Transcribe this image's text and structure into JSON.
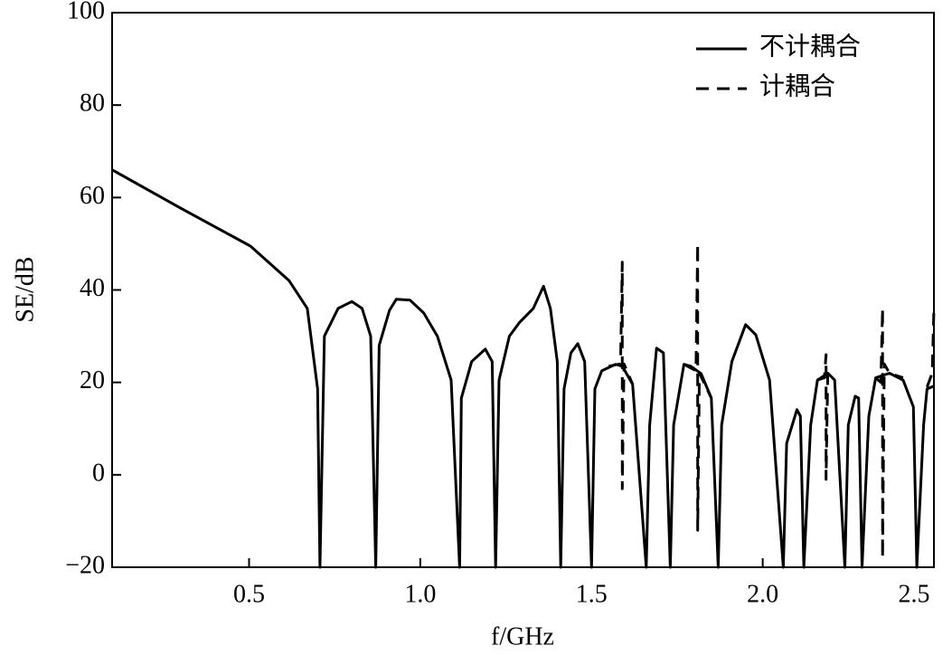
{
  "chart_data": {
    "type": "line",
    "xlabel": "f/GHz",
    "ylabel": "SE/dB",
    "xlim": [
      0.1,
      2.5
    ],
    "ylim": [
      -20,
      100
    ],
    "xticks": [
      0.5,
      {
        "value": 1,
        "label": "1.0"
      },
      1.5,
      {
        "value": 2,
        "label": "2.0"
      },
      2.5
    ],
    "yticks": [
      {
        "value": -20,
        "label": "−20"
      },
      0,
      20,
      40,
      60,
      80,
      100
    ],
    "legend": "upper right",
    "series": [
      {
        "name": "不计耦合",
        "color": "#000000",
        "dash": "solid",
        "x": [
          0.1,
          0.3,
          0.504,
          0.617,
          0.67,
          0.7,
          0.707,
          0.72,
          0.76,
          0.8,
          0.83,
          0.855,
          0.87,
          0.88,
          0.91,
          0.93,
          0.97,
          1.01,
          1.05,
          1.09,
          1.115,
          1.12,
          1.15,
          1.19,
          1.21,
          1.22,
          1.23,
          1.26,
          1.29,
          1.33,
          1.36,
          1.38,
          1.4,
          1.41,
          1.42,
          1.44,
          1.46,
          1.48,
          1.5,
          1.51,
          1.53,
          1.57,
          1.59,
          1.62,
          1.66,
          1.67,
          1.69,
          1.71,
          1.73,
          1.74,
          1.77,
          1.79,
          1.82,
          1.85,
          1.87,
          1.88,
          1.91,
          1.95,
          1.98,
          2.02,
          2.06,
          2.07,
          2.1,
          2.11,
          2.12,
          2.14,
          2.16,
          2.19,
          2.21,
          2.24,
          2.25,
          2.27,
          2.28,
          2.29,
          2.31,
          2.33,
          2.37,
          2.41,
          2.44,
          2.45,
          2.47,
          2.48,
          2.5
        ],
        "values": [
          66,
          57.7,
          49.5,
          42,
          36,
          18.6,
          -20,
          30,
          36,
          37.5,
          36,
          30,
          -20,
          28,
          35.6,
          38,
          37.8,
          35,
          30,
          20.5,
          -20,
          16.6,
          24.5,
          27.2,
          24.5,
          -20,
          20.5,
          30,
          33,
          36,
          40.8,
          36,
          24.5,
          -20,
          18.6,
          26.4,
          28.4,
          24.5,
          -20,
          18.6,
          22.5,
          23.9,
          23.5,
          19.6,
          -20,
          10.8,
          27.4,
          26.4,
          -20,
          10.8,
          23.9,
          23.5,
          21.9,
          16.6,
          -20,
          10.8,
          24.5,
          32.5,
          30.3,
          20.5,
          -20,
          6.8,
          14.1,
          12.7,
          -20,
          10.8,
          20.5,
          22,
          20.5,
          -20,
          10.8,
          17,
          16.6,
          -20,
          12.7,
          21,
          22,
          20.5,
          14.7,
          -20,
          10.8,
          18.6,
          19.2
        ]
      },
      {
        "name": "计耦合",
        "color": "#000000",
        "dash": "dashed",
        "x": [
          1.55,
          1.585,
          1.59,
          1.59,
          1.595,
          1.62,
          1.7,
          1.77,
          1.805,
          1.81,
          1.81,
          1.815,
          1.85,
          2.0,
          2.16,
          2.18,
          2.185,
          2.185,
          2.19,
          2.21,
          2.3,
          2.33,
          2.345,
          2.35,
          2.35,
          2.355,
          2.37,
          2.41,
          2.45,
          2.48,
          2.495,
          2.5
        ],
        "values": [
          23.5,
          24,
          46,
          -3,
          24,
          19.6,
          null,
          23.9,
          22.5,
          50,
          -12,
          22,
          16.6,
          null,
          20.5,
          21,
          26,
          -1,
          22,
          22,
          null,
          21,
          20,
          36,
          -18,
          24,
          22,
          21,
          null,
          19,
          22,
          36
        ]
      }
    ]
  }
}
